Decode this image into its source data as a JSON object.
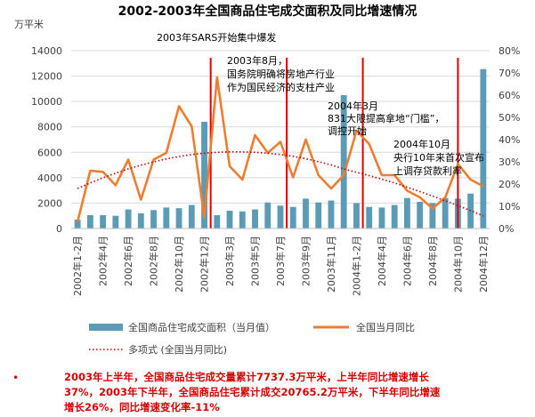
{
  "chart_data": {
    "type": "bar+line",
    "title": "2002-2003年全国商品住宅成交面积及同比增速情况",
    "left_axis_unit": "万平米",
    "left_ylim": [
      0,
      14000
    ],
    "left_ticks": [
      "0",
      "2000",
      "4000",
      "6000",
      "8000",
      "10000",
      "12000",
      "14000"
    ],
    "right_ylim": [
      0,
      80
    ],
    "right_ticks": [
      "0%",
      "10%",
      "20%",
      "30%",
      "40%",
      "50%",
      "60%",
      "70%",
      "80%"
    ],
    "x_tick_labels": [
      "2002年1-2月",
      "2002年4月",
      "2002年6月",
      "2002年8月",
      "2002年10月",
      "2002年12月",
      "2003年3月",
      "2003年5月",
      "2003年7月",
      "2003年9月",
      "2003年11月",
      "2004年1-2月",
      "2004年4月",
      "2004年6月",
      "2004年8月",
      "2004年10月",
      "2004年12月"
    ],
    "tick_every": 2,
    "categories": [
      "2002年1-2月",
      "2002年3月",
      "2002年4月",
      "2002年5月",
      "2002年6月",
      "2002年7月",
      "2002年8月",
      "2002年9月",
      "2002年10月",
      "2002年11月",
      "2002年12月",
      "2003年1-2月",
      "2003年3月",
      "2003年4月",
      "2003年5月",
      "2003年6月",
      "2003年7月",
      "2003年8月",
      "2003年9月",
      "2003年10月",
      "2003年11月",
      "2003年12月",
      "2004年1-2月",
      "2004年3月",
      "2004年4月",
      "2004年5月",
      "2004年6月",
      "2004年7月",
      "2004年8月",
      "2004年9月",
      "2004年10月",
      "2004年11月",
      "2004年12月"
    ],
    "series": [
      {
        "name": "全国商品住宅成交面积（当月值）",
        "type": "bar",
        "axis": "left",
        "color": "#5b9bb5",
        "values": [
          700,
          1050,
          1050,
          1000,
          1500,
          1200,
          1450,
          1650,
          1600,
          1850,
          8400,
          1050,
          1400,
          1350,
          1500,
          2050,
          1800,
          1700,
          2350,
          2050,
          2200,
          10500,
          2000,
          1700,
          1650,
          1850,
          2400,
          2100,
          2000,
          2400,
          2350,
          2750,
          12550
        ]
      },
      {
        "name": "全国当月同比",
        "type": "line",
        "axis": "right",
        "color": "#ed7d31",
        "values": [
          3,
          26,
          25.5,
          19.5,
          31,
          13,
          31,
          34,
          55,
          46,
          5,
          68,
          28,
          22,
          42,
          34,
          39,
          23,
          40,
          24,
          18,
          24,
          44,
          38,
          24,
          24,
          17,
          14,
          9,
          14,
          29,
          22,
          19
        ]
      },
      {
        "name": "多项式 (全国当月同比)",
        "type": "trendline",
        "axis": "right",
        "color": "#c00000",
        "values": [
          18,
          20.5,
          22.8,
          24.9,
          26.8,
          28.5,
          30,
          31.3,
          32.4,
          33.3,
          33.9,
          34.3,
          34.5,
          34.5,
          34.3,
          33.9,
          33.3,
          32.5,
          31.4,
          30.1,
          28.6,
          26.8,
          25.3,
          23.8,
          22.2,
          20.5,
          18.6,
          16.6,
          14.6,
          12.5,
          10.3,
          8.1,
          5.7
        ]
      }
    ],
    "event_lines": [
      {
        "after_index": 10.5,
        "color": "#e00000"
      },
      {
        "after_index": 16.5,
        "color": "#e00000"
      },
      {
        "after_index": 22.5,
        "color": "#e00000"
      },
      {
        "after_index": 30,
        "color": "#e00000"
      }
    ],
    "annotations": [
      {
        "lines": [
          "2003年SARS开始集中爆发"
        ]
      },
      {
        "lines": [
          "2003年8月，",
          "国务院明确将房地产行业",
          "作为国民经济的支柱产业"
        ]
      },
      {
        "lines": [
          "2004年3月",
          "831大限提高拿地“门槛”，",
          "调控开始"
        ]
      },
      {
        "lines": [
          "2004年10月",
          "央行10年来首次宣布",
          "上调存贷款利率"
        ]
      }
    ],
    "legend_position": "bottom"
  },
  "notes": {
    "bullet": "•",
    "text": "2003年上半年，全国商品住宅成交量累计7737.3万平米，上半年同比增速增长37%，2003年下半年，全国商品住宅累计成交20765.2万平米，下半年同比增速增长26%，同比增速变化率-11%"
  }
}
